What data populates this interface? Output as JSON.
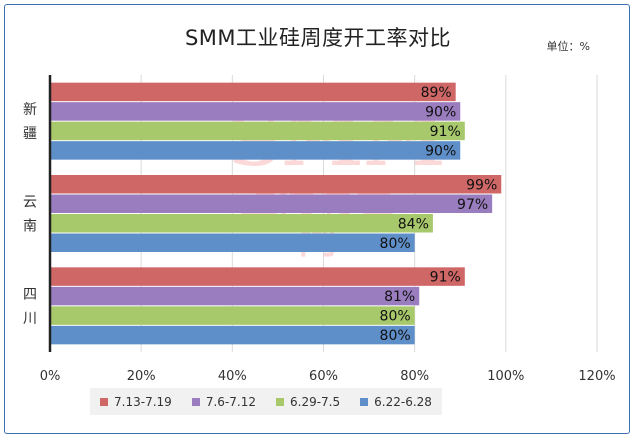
{
  "title": "SMM工业硅周度开工率对比",
  "unit_label": "单位：%",
  "watermark": {
    "line1": "SMM",
    "line2": "上海有色网"
  },
  "chart_data": {
    "type": "bar",
    "orientation": "horizontal",
    "title": "SMM工业硅周度开工率对比",
    "categories": [
      "新疆",
      "云南",
      "四川"
    ],
    "series": [
      {
        "name": "7.13-7.19",
        "color": "#d06767",
        "values": [
          89,
          99,
          91
        ]
      },
      {
        "name": "7.6-7.12",
        "color": "#9a7dbf",
        "values": [
          90,
          97,
          81
        ]
      },
      {
        "name": "6.29-7.5",
        "color": "#a7c86b",
        "values": [
          91,
          84,
          80
        ]
      },
      {
        "name": "6.22-6.28",
        "color": "#5f8fc9",
        "values": [
          90,
          80,
          80
        ]
      }
    ],
    "xlim": [
      0,
      120
    ],
    "xticks": [
      "0%",
      "20%",
      "40%",
      "60%",
      "80%",
      "100%",
      "120%"
    ],
    "grid": true,
    "legend_position": "bottom"
  }
}
